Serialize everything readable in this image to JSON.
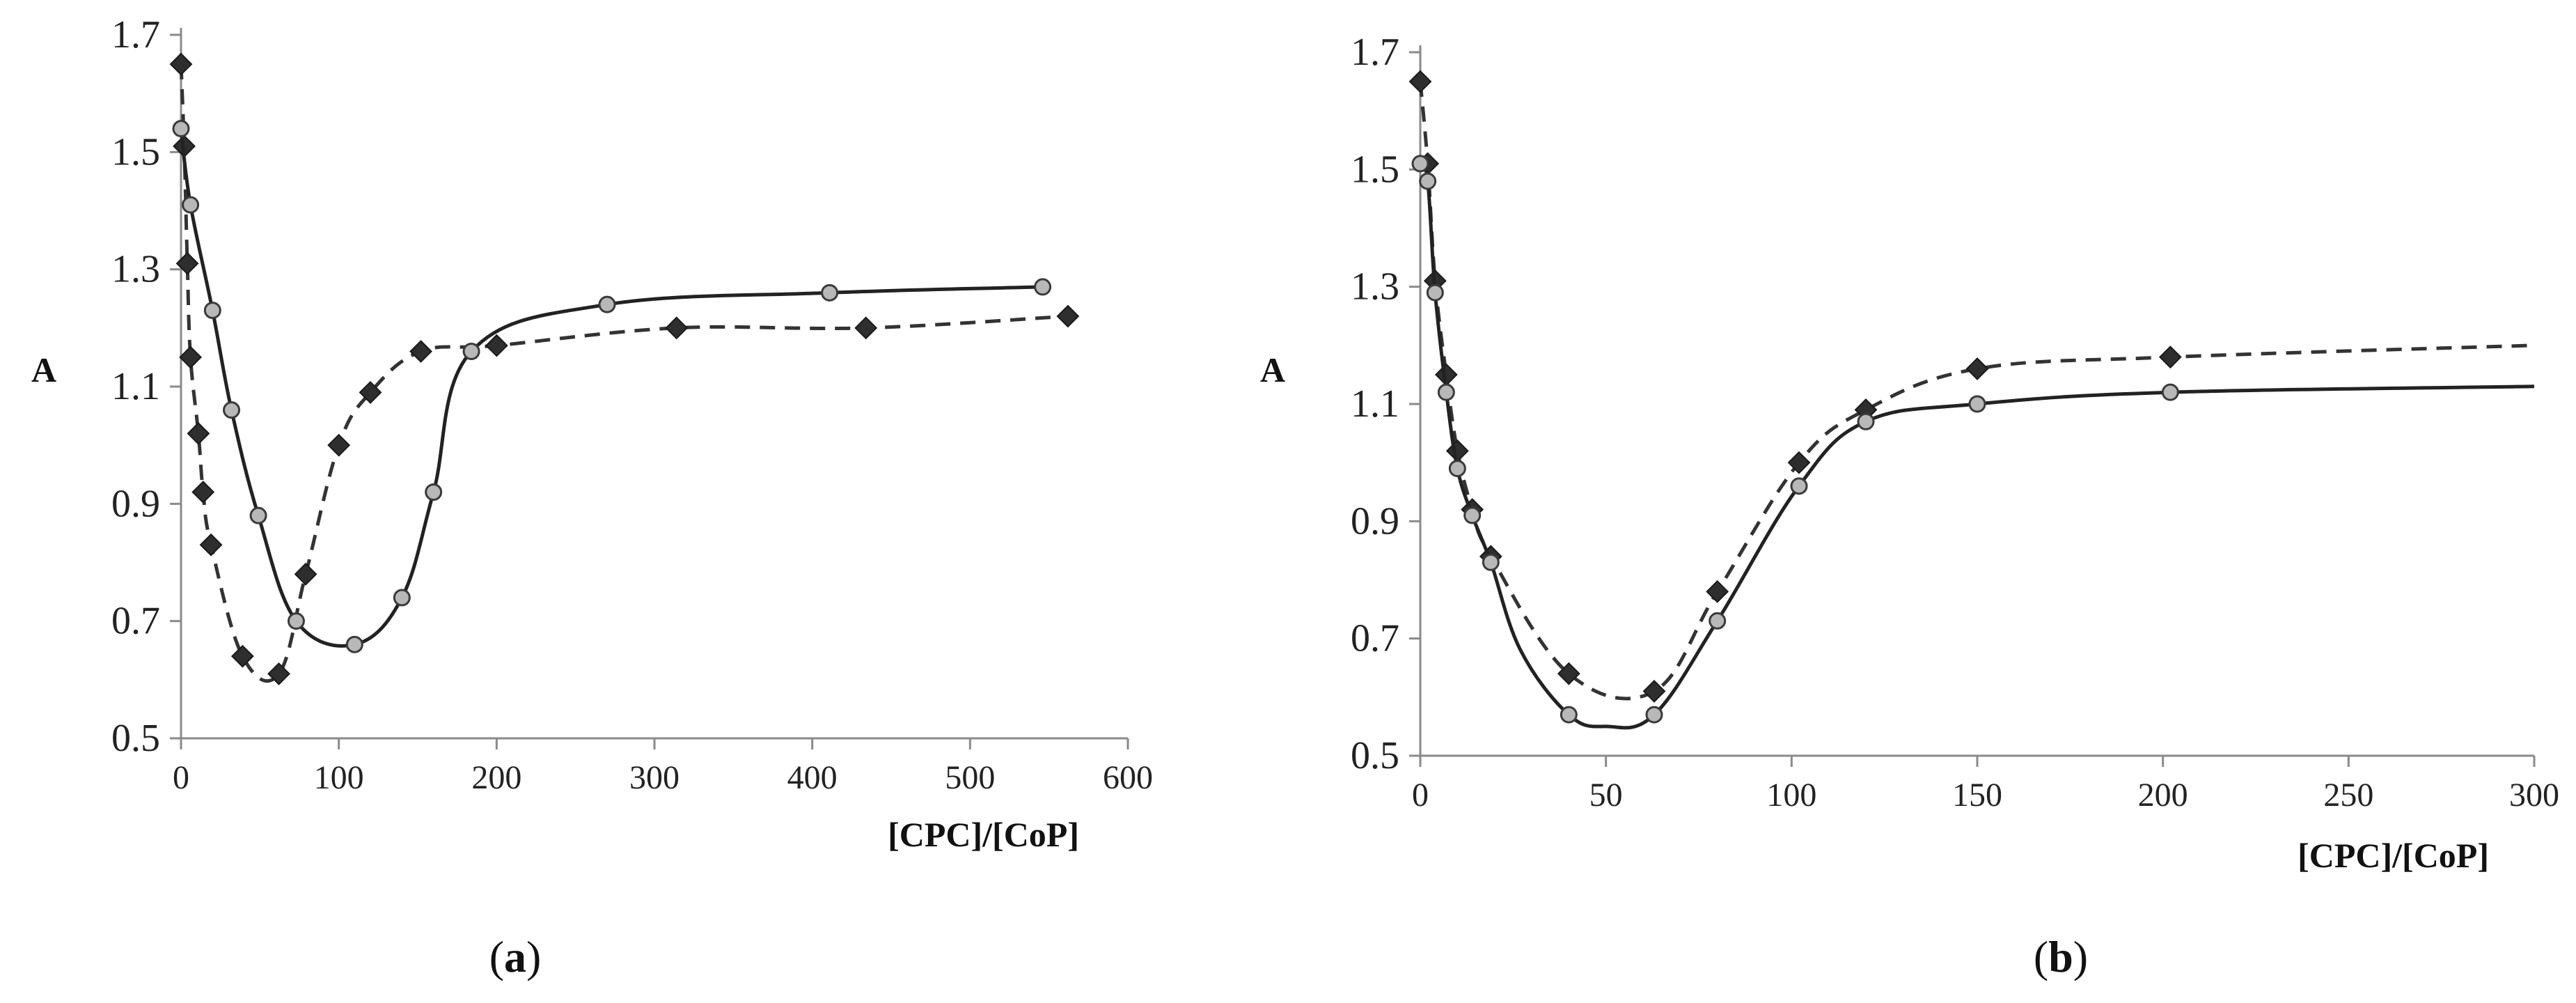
{
  "chart_data": [
    {
      "type": "line",
      "panel_label": "a",
      "xlabel": "[CPC]/[CoP]",
      "ylabel": "A",
      "xlim": [
        0,
        600
      ],
      "ylim": [
        0.5,
        1.7
      ],
      "xticks": [
        0,
        100,
        200,
        300,
        400,
        500,
        600
      ],
      "yticks": [
        0.5,
        0.7,
        0.9,
        1.1,
        1.3,
        1.5,
        1.7
      ],
      "xtick_labels": [
        "0",
        "100",
        "200",
        "300",
        "400",
        "500",
        "600"
      ],
      "ytick_labels": [
        "0.5",
        "0.7",
        "0.9",
        "1.1",
        "1.3",
        "1.5",
        "1.7"
      ],
      "series": [
        {
          "name": "diamond-dashed",
          "marker": "diamond",
          "line": "dashed",
          "color": "#333333",
          "x": [
            0,
            2,
            4,
            6,
            11,
            14,
            19,
            39,
            62,
            79,
            100,
            120,
            152,
            200,
            314,
            434,
            562
          ],
          "y": [
            1.65,
            1.51,
            1.31,
            1.15,
            1.02,
            0.92,
            0.83,
            0.64,
            0.61,
            0.78,
            1.0,
            1.09,
            1.16,
            1.17,
            1.2,
            1.2,
            1.22
          ]
        },
        {
          "name": "circle-solid",
          "marker": "circle",
          "line": "solid",
          "color": "#222222",
          "x": [
            0,
            6,
            20,
            32,
            49,
            73,
            110,
            140,
            160,
            184,
            270,
            411,
            546
          ],
          "y": [
            1.54,
            1.41,
            1.23,
            1.06,
            0.88,
            0.7,
            0.66,
            0.74,
            0.92,
            1.16,
            1.24,
            1.26,
            1.27
          ]
        }
      ]
    },
    {
      "type": "line",
      "panel_label": "b",
      "xlabel": "[CPC]/[CoP]",
      "ylabel": "A",
      "xlim": [
        0,
        300
      ],
      "ylim": [
        0.5,
        1.7
      ],
      "xticks": [
        0,
        50,
        100,
        150,
        200,
        250,
        300
      ],
      "yticks": [
        0.5,
        0.7,
        0.9,
        1.1,
        1.3,
        1.5,
        1.7
      ],
      "xtick_labels": [
        "0",
        "50",
        "100",
        "150",
        "200",
        "250",
        "300"
      ],
      "ytick_labels": [
        "0.5",
        "0.7",
        "0.9",
        "1.1",
        "1.3",
        "1.5",
        "1.7"
      ],
      "series": [
        {
          "name": "diamond-dashed",
          "marker": "diamond",
          "line": "dashed",
          "color": "#333333",
          "x": [
            0,
            2,
            4,
            7,
            10,
            14,
            19,
            40,
            63,
            80,
            102,
            120,
            150,
            202,
            300
          ],
          "y": [
            1.65,
            1.51,
            1.31,
            1.15,
            1.02,
            0.92,
            0.84,
            0.64,
            0.61,
            0.78,
            1.0,
            1.09,
            1.16,
            1.18,
            1.2
          ],
          "line_only_last_point": true
        },
        {
          "name": "circle-solid",
          "marker": "circle",
          "line": "solid",
          "color": "#222222",
          "x": [
            0,
            2,
            4,
            7,
            10,
            14,
            19,
            27,
            40,
            50,
            63,
            80,
            102,
            120,
            150,
            202,
            300
          ],
          "y": [
            1.51,
            1.48,
            1.29,
            1.12,
            0.99,
            0.91,
            0.83,
            0.68,
            0.57,
            0.55,
            0.57,
            0.73,
            0.96,
            1.07,
            1.1,
            1.12,
            1.13
          ],
          "line_only_points": [
            7,
            9,
            16
          ]
        }
      ]
    }
  ]
}
